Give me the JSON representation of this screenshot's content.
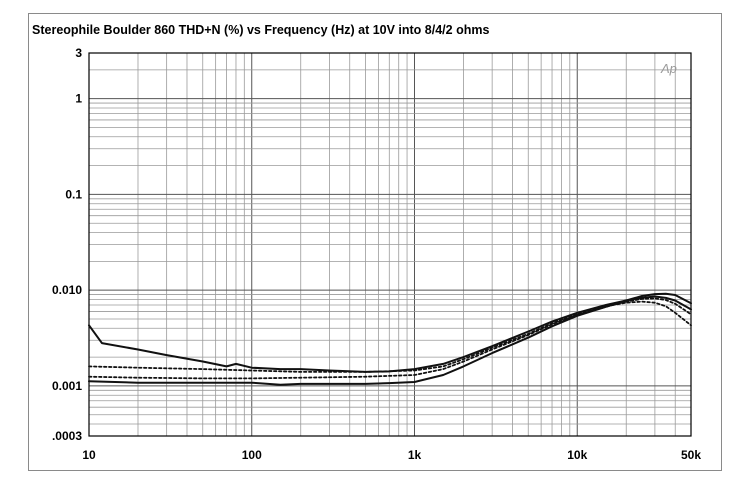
{
  "chart_data": {
    "type": "line",
    "title": "Stereophile  Boulder 860  THD+N (%) vs Frequency (Hz) at 10V into 8/4/2 ohms",
    "xlabel": "",
    "ylabel": "",
    "x_scale": "log",
    "y_scale": "log",
    "xlim": [
      10,
      50000
    ],
    "ylim": [
      0.0003,
      3
    ],
    "grid": true,
    "x_ticks": [
      {
        "value": 10,
        "label": "10"
      },
      {
        "value": 100,
        "label": "100"
      },
      {
        "value": 1000,
        "label": "1k"
      },
      {
        "value": 10000,
        "label": "10k"
      },
      {
        "value": 50000,
        "label": "50k"
      }
    ],
    "y_ticks": [
      {
        "value": 3,
        "label": "3"
      },
      {
        "value": 1,
        "label": "1"
      },
      {
        "value": 0.1,
        "label": "0.1"
      },
      {
        "value": 0.01,
        "label": "0.010"
      },
      {
        "value": 0.001,
        "label": "0.001"
      },
      {
        "value": 0.0003,
        "label": ".0003"
      }
    ],
    "watermark": "Ap",
    "series": [
      {
        "style": "solid",
        "x": [
          10,
          12,
          20,
          30,
          50,
          70,
          80,
          100,
          150,
          200,
          300,
          500,
          700,
          1000,
          1500,
          2000,
          3000,
          5000,
          7000,
          10000,
          15000,
          20000,
          25000,
          30000,
          35000,
          40000,
          50000
        ],
        "y": [
          0.0043,
          0.0028,
          0.0024,
          0.0021,
          0.0018,
          0.0016,
          0.0017,
          0.00155,
          0.0015,
          0.0015,
          0.00145,
          0.0014,
          0.00142,
          0.0015,
          0.0017,
          0.002,
          0.0026,
          0.0037,
          0.0047,
          0.0058,
          0.007,
          0.0078,
          0.0083,
          0.0086,
          0.0083,
          0.0078,
          0.0063
        ]
      },
      {
        "style": "dotted",
        "x": [
          10,
          20,
          50,
          100,
          200,
          500,
          1000,
          1500,
          2000,
          3000,
          5000,
          7000,
          10000,
          15000,
          20000,
          25000,
          30000,
          35000,
          40000,
          50000
        ],
        "y": [
          0.0016,
          0.00155,
          0.0015,
          0.00145,
          0.0014,
          0.0014,
          0.00145,
          0.0016,
          0.0019,
          0.0025,
          0.0035,
          0.0045,
          0.0056,
          0.0068,
          0.0074,
          0.0076,
          0.0074,
          0.0068,
          0.0058,
          0.0043
        ]
      },
      {
        "style": "dotted",
        "x": [
          10,
          20,
          50,
          100,
          200,
          500,
          1000,
          1500,
          2000,
          3000,
          5000,
          7000,
          10000,
          15000,
          20000,
          25000,
          30000,
          35000,
          40000,
          50000
        ],
        "y": [
          0.00125,
          0.00122,
          0.0012,
          0.0012,
          0.00122,
          0.00125,
          0.0013,
          0.0015,
          0.0018,
          0.0024,
          0.0034,
          0.0044,
          0.0055,
          0.0067,
          0.0076,
          0.0081,
          0.0082,
          0.0079,
          0.0072,
          0.0056
        ]
      },
      {
        "style": "solid",
        "x": [
          10,
          20,
          50,
          100,
          150,
          200,
          300,
          500,
          700,
          1000,
          1500,
          2000,
          3000,
          5000,
          7000,
          10000,
          15000,
          20000,
          25000,
          30000,
          35000,
          40000,
          50000
        ],
        "y": [
          0.00112,
          0.00108,
          0.00108,
          0.00108,
          0.00103,
          0.00105,
          0.00105,
          0.00105,
          0.00107,
          0.0011,
          0.0013,
          0.0016,
          0.0022,
          0.0032,
          0.0042,
          0.0054,
          0.0067,
          0.0078,
          0.0087,
          0.0091,
          0.0092,
          0.0089,
          0.0073
        ]
      }
    ]
  }
}
